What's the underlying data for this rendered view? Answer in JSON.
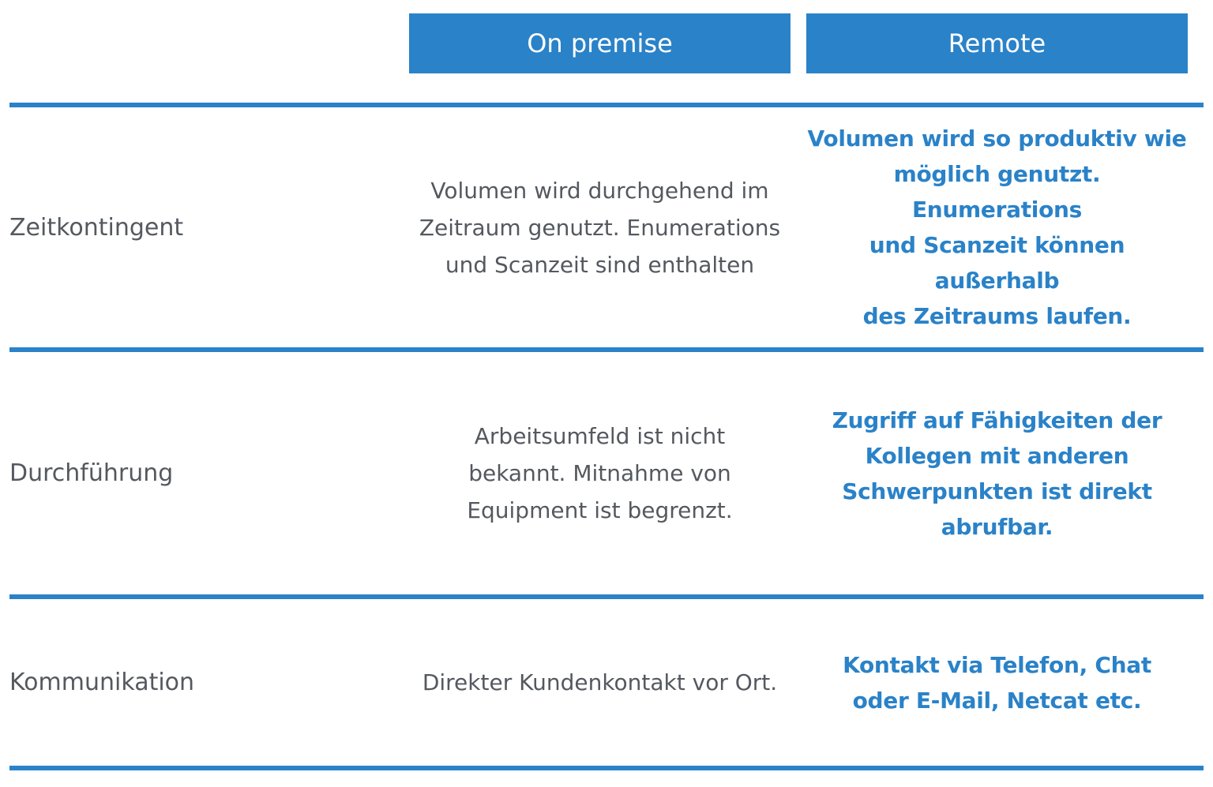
{
  "theme": {
    "accent_blue": "#2a82c8",
    "text_gray": "#54595f",
    "header_text": "#ffffff",
    "background": "#ffffff"
  },
  "table": {
    "columns": [
      {
        "label": "On premise"
      },
      {
        "label": "Remote"
      }
    ],
    "rows": [
      {
        "label": "Zeitkontingent",
        "on_premise": "Volumen wird durchgehend im\nZeitraum genutzt. Enumerations\nund Scanzeit sind enthalten",
        "remote": "Volumen wird so produktiv wie\nmöglich genutzt. Enumerations\nund Scanzeit können außerhalb\ndes Zeitraums laufen."
      },
      {
        "label": "Durchführung",
        "on_premise": "Arbeitsumfeld ist nicht\nbekannt. Mitnahme von\nEquipment ist begrenzt.",
        "remote": "Zugriff auf Fähigkeiten der\nKollegen mit anderen\nSchwerpunkten ist direkt\nabrufbar."
      },
      {
        "label": "Kommunikation",
        "on_premise": "Direkter Kundenkontakt vor Ort.",
        "remote": "Kontakt via Telefon, Chat\noder E-Mail, Netcat etc."
      }
    ]
  }
}
